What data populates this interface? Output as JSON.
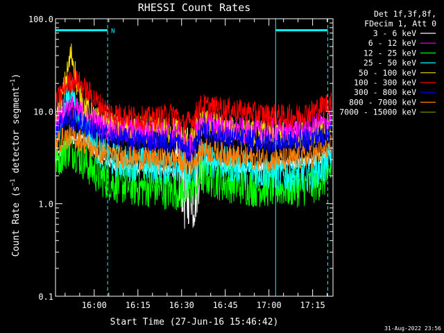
{
  "chart_data": {
    "type": "line",
    "title": "RHESSI Count Rates",
    "xlabel": "Start Time (27-Jun-16 15:46:42)",
    "ylabel": "Count Rate (s^-1 detector segment^-1)",
    "yscale": "log",
    "ylim": [
      0.1,
      100.0
    ],
    "y_ticks": [
      "0.1",
      "1.0",
      "10.0",
      "100.0"
    ],
    "x_start_min": 946.7,
    "x_end_min": 1042.0,
    "x_ticks": [
      {
        "label": "16:00",
        "min": 960
      },
      {
        "label": "16:15",
        "min": 975
      },
      {
        "label": "16:30",
        "min": 990
      },
      {
        "label": "16:45",
        "min": 1005
      },
      {
        "label": "17:00",
        "min": 1020
      },
      {
        "label": "17:15",
        "min": 1035
      }
    ],
    "legend_header": [
      "Det 1f,3f,8f,",
      "FDecim 1, Att 0"
    ],
    "legend_position": "top-right, outside plot",
    "night_label": "N",
    "vertical_markers": [
      {
        "min": 964.6,
        "style": "dashed",
        "color": "#00ffff"
      },
      {
        "min": 1022.3,
        "style": "solid",
        "color": "#00ffff"
      },
      {
        "min": 1040.2,
        "style": "dashed",
        "color": "#00ffff"
      }
    ],
    "night_bars": [
      {
        "from_min": 946.7,
        "to_min": 964.6,
        "y": 75
      },
      {
        "from_min": 1022.3,
        "to_min": 1040.2,
        "y": 75
      }
    ],
    "series": [
      {
        "name": "3 - 6 keV",
        "color": "#ffffff",
        "t": [
          946.7,
          949,
          951,
          953,
          955,
          957,
          959,
          961,
          963,
          966,
          970,
          975,
          980,
          985,
          988,
          990,
          991,
          992,
          993,
          994,
          995,
          996,
          998,
          1000,
          1005,
          1010,
          1015,
          1020,
          1025,
          1030,
          1035,
          1040,
          1041.5
        ],
        "v": [
          3.0,
          3.8,
          4.5,
          5.0,
          5.2,
          4.8,
          4.3,
          3.5,
          3.0,
          2.7,
          2.5,
          2.4,
          2.4,
          2.3,
          2.2,
          2.0,
          1.2,
          1.1,
          2.0,
          1.1,
          1.5,
          2.6,
          3.0,
          2.8,
          2.6,
          2.5,
          2.5,
          2.5,
          2.6,
          2.7,
          2.9,
          3.5,
          3.8
        ]
      },
      {
        "name": "6 - 12 keV",
        "color": "#ff00ff",
        "t": [
          946.7,
          949,
          951,
          953,
          955,
          957,
          959,
          961,
          963,
          966,
          970,
          975,
          980,
          985,
          988,
          990,
          992,
          994,
          996,
          998,
          1000,
          1005,
          1010,
          1015,
          1020,
          1025,
          1030,
          1035,
          1040,
          1041.5
        ],
        "v": [
          8.0,
          9.5,
          11.0,
          10.5,
          9.5,
          9.0,
          8.0,
          7.5,
          7.0,
          6.5,
          6.2,
          6.0,
          5.8,
          5.6,
          6.0,
          5.0,
          4.0,
          4.5,
          6.5,
          7.5,
          7.2,
          6.6,
          6.2,
          6.0,
          6.0,
          6.0,
          6.2,
          6.6,
          7.5,
          8.0
        ]
      },
      {
        "name": "12 - 25 keV",
        "color": "#00ff00",
        "t": [
          946.7,
          949,
          951,
          953,
          955,
          957,
          959,
          961,
          963,
          966,
          970,
          975,
          980,
          985,
          988,
          990,
          992,
          994,
          996,
          998,
          1000,
          1005,
          1010,
          1015,
          1020,
          1025,
          1030,
          1035,
          1040,
          1041.5
        ],
        "v": [
          3.0,
          3.5,
          4.0,
          3.8,
          3.2,
          2.8,
          2.4,
          2.1,
          1.9,
          1.7,
          1.6,
          1.5,
          1.5,
          1.4,
          1.4,
          1.4,
          1.4,
          1.5,
          1.9,
          2.0,
          1.9,
          1.7,
          1.6,
          1.5,
          1.5,
          1.5,
          1.5,
          1.6,
          2.0,
          2.5
        ]
      },
      {
        "name": "25 - 50 keV",
        "color": "#00ffff",
        "t": [
          946.7,
          949,
          951,
          952,
          953,
          954,
          955,
          957,
          959,
          961,
          963,
          966,
          970,
          975,
          980,
          985,
          988,
          990,
          992,
          994,
          996,
          998,
          1000,
          1005,
          1010,
          1015,
          1020,
          1025,
          1030,
          1035,
          1040,
          1041.5
        ],
        "v": [
          6.0,
          9.0,
          14.0,
          17.0,
          14.0,
          10.0,
          8.0,
          6.5,
          5.0,
          4.0,
          3.5,
          3.0,
          2.8,
          2.7,
          2.6,
          2.5,
          2.8,
          2.5,
          2.0,
          2.4,
          3.0,
          3.2,
          3.0,
          2.7,
          2.5,
          2.3,
          2.2,
          2.1,
          2.1,
          2.2,
          2.6,
          3.5
        ]
      },
      {
        "name": "50 - 100 keV",
        "color": "#ffe000",
        "t": [
          946.7,
          949,
          951,
          952,
          953,
          954,
          955,
          957,
          959,
          961,
          963,
          966,
          970,
          975,
          980,
          985,
          988,
          990,
          992,
          994,
          996,
          998,
          1000,
          1005,
          1010,
          1015,
          1020,
          1025,
          1030,
          1035,
          1040,
          1041.5
        ],
        "v": [
          8.0,
          14.0,
          28.0,
          42.0,
          33.0,
          20.0,
          14.0,
          11.0,
          9.0,
          8.0,
          7.5,
          6.8,
          6.5,
          6.4,
          6.3,
          6.2,
          6.3,
          5.5,
          5.0,
          5.5,
          7.0,
          7.5,
          7.2,
          6.5,
          6.0,
          5.8,
          5.6,
          5.5,
          5.6,
          5.8,
          6.5,
          8.0
        ]
      },
      {
        "name": "100 - 300 keV",
        "color": "#ff0000",
        "t": [
          946.7,
          949,
          951,
          953,
          955,
          957,
          959,
          961,
          963,
          966,
          970,
          975,
          980,
          985,
          988,
          990,
          992,
          994,
          996,
          998,
          1000,
          1005,
          1010,
          1015,
          1020,
          1025,
          1030,
          1035,
          1040,
          1041.5
        ],
        "v": [
          12.0,
          16.0,
          20.0,
          22.0,
          20.0,
          17.0,
          15.0,
          12.5,
          11.0,
          9.5,
          9.0,
          8.5,
          8.3,
          9.0,
          9.5,
          7.0,
          7.5,
          8.0,
          11.0,
          11.5,
          11.0,
          10.5,
          10.0,
          9.5,
          9.0,
          8.8,
          9.0,
          10.0,
          12.0,
          13.5
        ]
      },
      {
        "name": "300 - 800 keV",
        "color": "#0000ff",
        "t": [
          946.7,
          949,
          951,
          953,
          955,
          957,
          959,
          961,
          963,
          966,
          970,
          975,
          980,
          985,
          988,
          990,
          992,
          994,
          996,
          998,
          1000,
          1005,
          1010,
          1015,
          1020,
          1025,
          1030,
          1035,
          1040,
          1041.5
        ],
        "v": [
          7.0,
          7.8,
          8.2,
          8.0,
          7.6,
          7.0,
          6.6,
          6.0,
          5.6,
          5.2,
          5.0,
          4.8,
          4.8,
          4.7,
          4.8,
          4.2,
          3.5,
          3.8,
          5.2,
          6.0,
          5.8,
          5.2,
          5.0,
          4.8,
          4.7,
          4.6,
          4.7,
          5.0,
          5.8,
          6.2
        ]
      },
      {
        "name": "800 - 7000 keV",
        "color": "#ff8000",
        "t": [
          946.7,
          949,
          951,
          953,
          955,
          957,
          959,
          961,
          963,
          966,
          970,
          975,
          980,
          985,
          988,
          990,
          992,
          994,
          996,
          998,
          1000,
          1005,
          1010,
          1015,
          1020,
          1025,
          1030,
          1035,
          1040,
          1041.5
        ],
        "v": [
          4.5,
          5.0,
          5.3,
          5.2,
          4.9,
          4.5,
          4.1,
          3.8,
          3.5,
          3.3,
          3.2,
          3.1,
          3.0,
          3.0,
          3.1,
          2.9,
          2.6,
          2.8,
          3.6,
          3.9,
          3.7,
          3.4,
          3.2,
          3.1,
          3.0,
          3.0,
          3.1,
          3.3,
          3.8,
          4.2
        ]
      },
      {
        "name": "7000 - 15000 keV",
        "color": "#808000",
        "t": [
          946.7,
          1041.5
        ],
        "v": [
          3.0,
          3.0
        ]
      }
    ]
  },
  "timestamp": "31-Aug-2022 23:56"
}
